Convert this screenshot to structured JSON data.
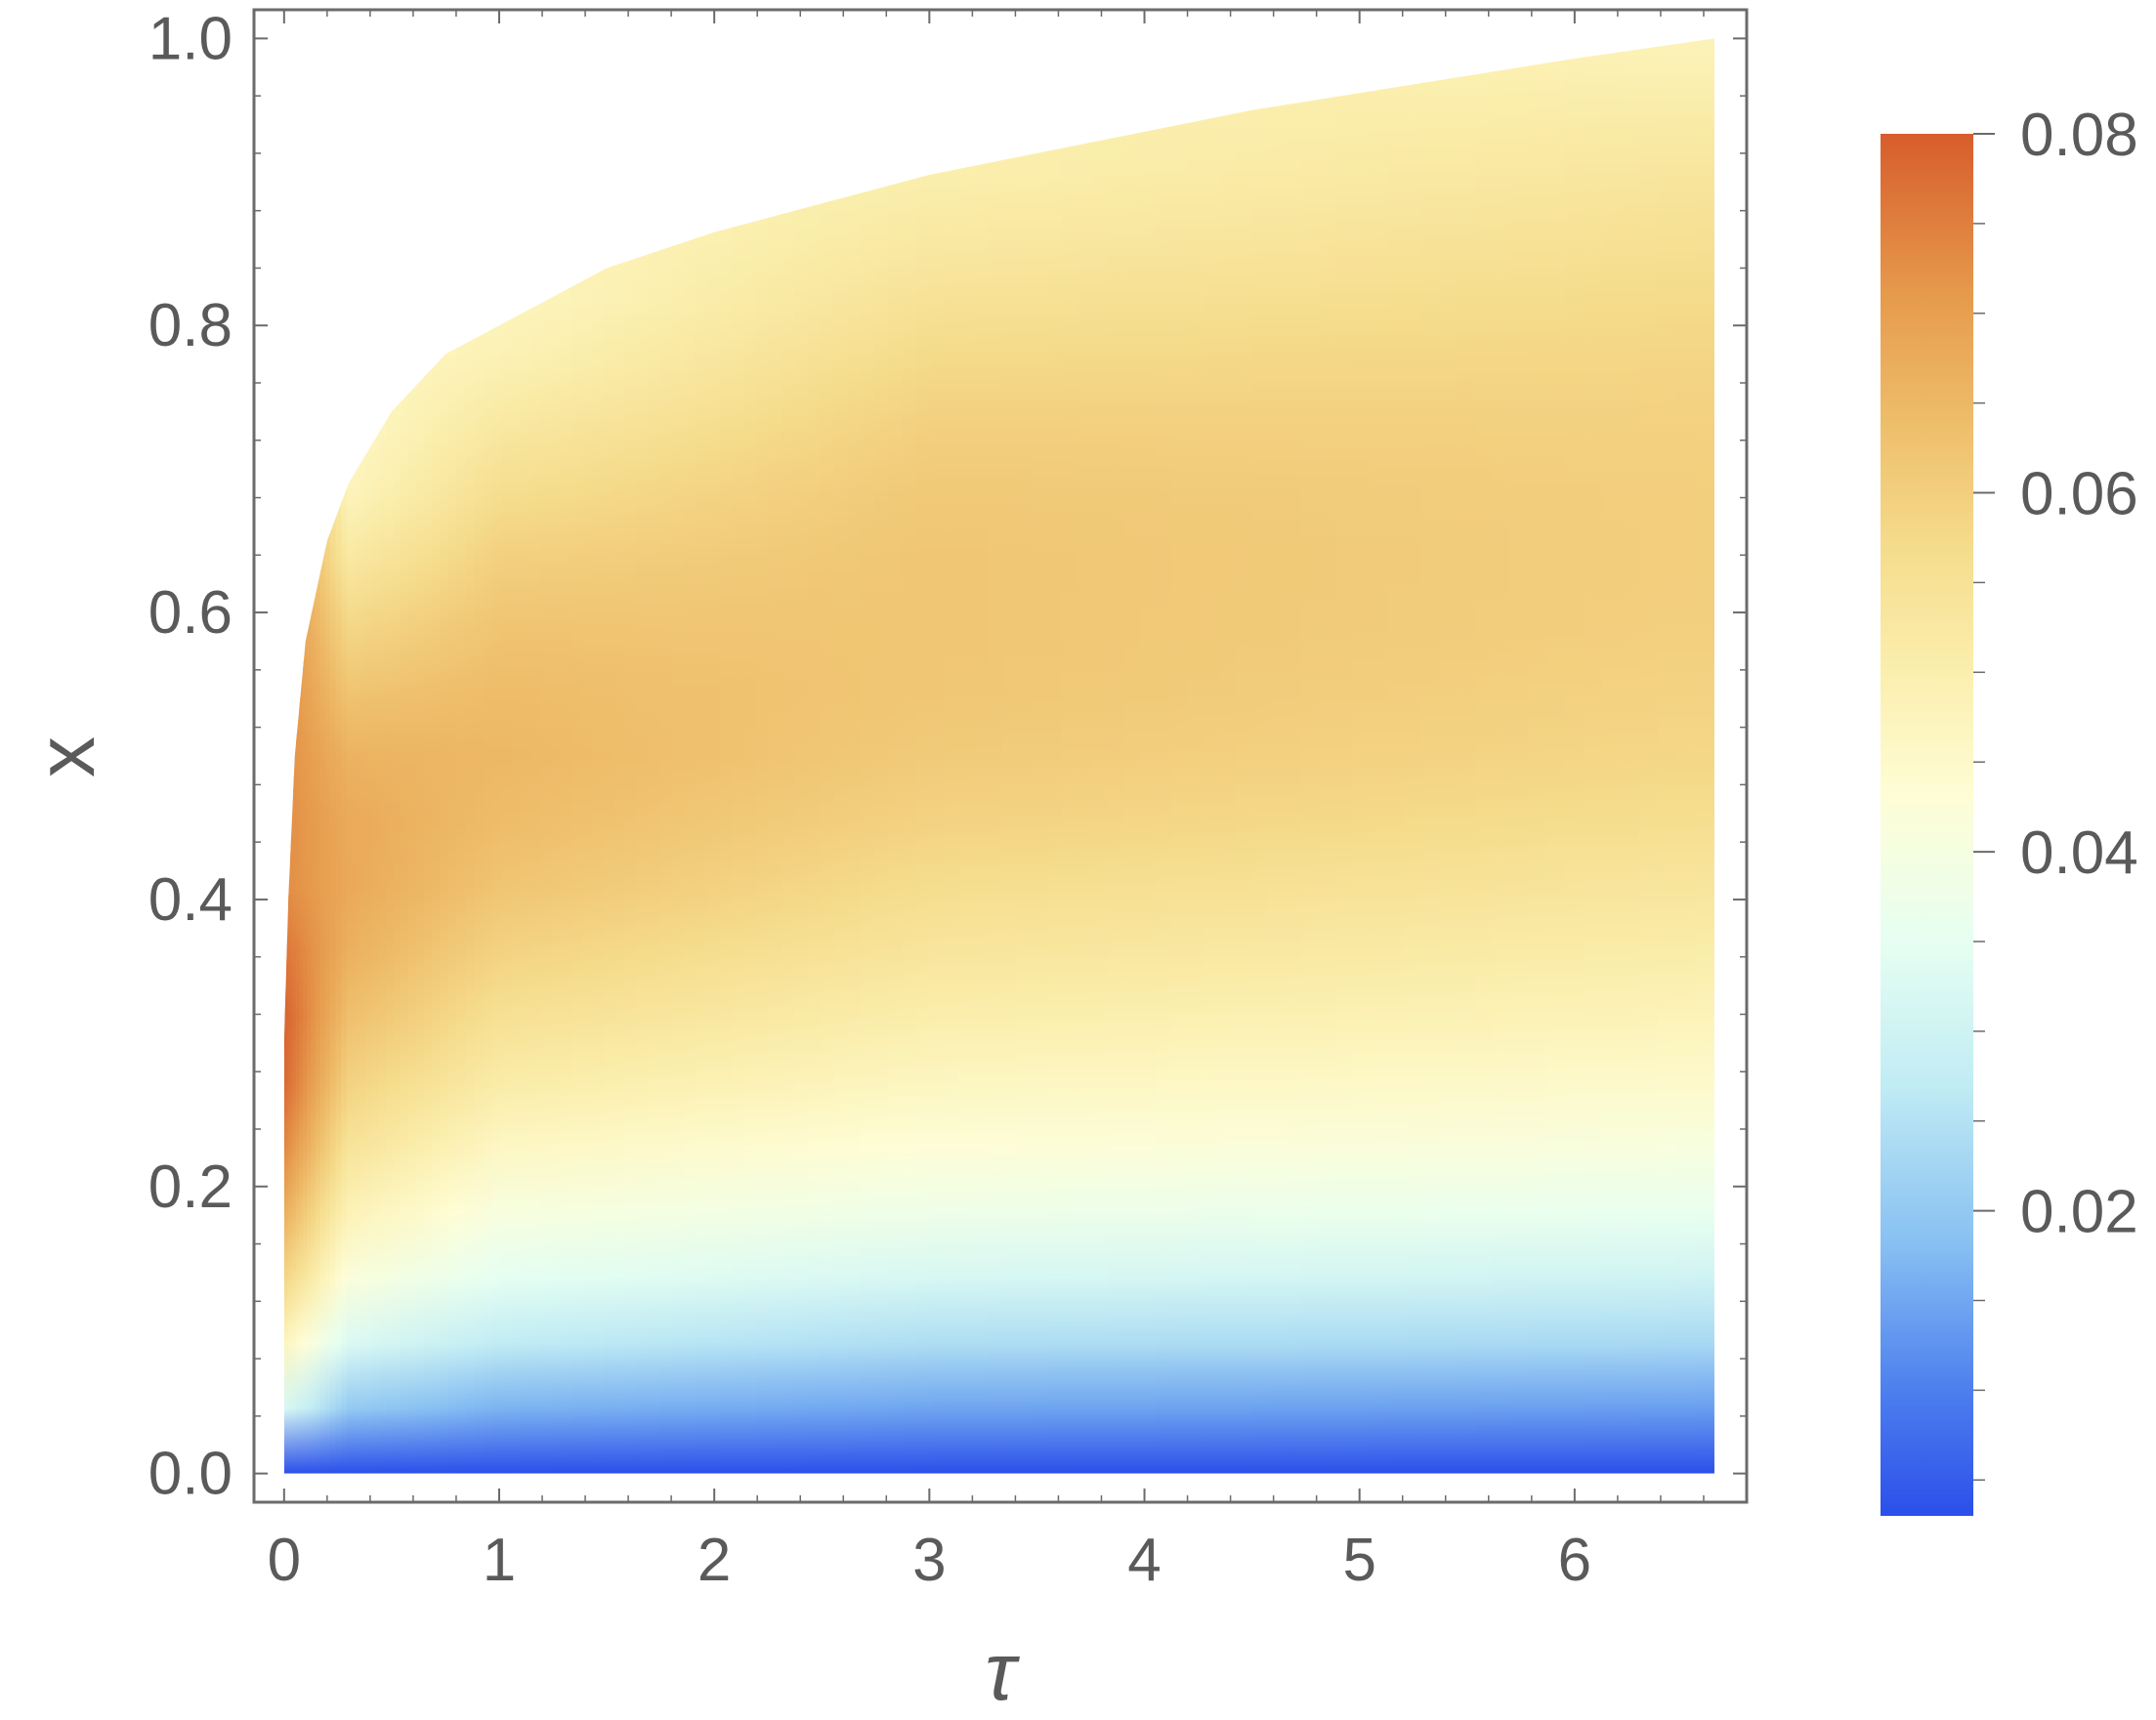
{
  "chart_data": {
    "type": "heatmap",
    "title": "",
    "xlabel": "τ",
    "ylabel": "x",
    "xlim": [
      -0.14,
      6.8
    ],
    "ylim": [
      -0.02,
      1.02
    ],
    "x_ticks": [
      0,
      1,
      2,
      3,
      4,
      5,
      6
    ],
    "x_tick_labels": [
      "0",
      "1",
      "2",
      "3",
      "4",
      "5",
      "6"
    ],
    "y_ticks": [
      0.0,
      0.2,
      0.4,
      0.6,
      0.8,
      1.0
    ],
    "y_tick_labels": [
      "0.0",
      "0.2",
      "0.4",
      "0.6",
      "0.8",
      "1.0"
    ],
    "grid": false,
    "domain": {
      "tau_max": 6.65,
      "x_min": 0.0,
      "upper_boundary_tau": [
        0.0,
        0.02,
        0.05,
        0.1,
        0.2,
        0.3,
        0.5,
        0.75,
        1.0,
        1.5,
        2.0,
        2.5,
        3.0,
        3.5,
        4.0,
        4.5,
        5.0,
        5.5,
        6.0,
        6.65
      ],
      "upper_boundary_x": [
        0.3,
        0.4,
        0.5,
        0.58,
        0.65,
        0.69,
        0.74,
        0.78,
        0.8,
        0.84,
        0.865,
        0.885,
        0.905,
        0.92,
        0.935,
        0.95,
        0.962,
        0.974,
        0.986,
        1.0
      ]
    },
    "value_field": {
      "x_samples": [
        0.0,
        0.05,
        0.1,
        0.15,
        0.2,
        0.25,
        0.3,
        0.35,
        0.4,
        0.45,
        0.5,
        0.55,
        0.6,
        0.65,
        0.7,
        0.75,
        0.8,
        0.85,
        0.9,
        0.95,
        1.0
      ],
      "rows": [
        {
          "tau": 0.0,
          "values": [
            0.003,
            0.035,
            0.05,
            0.062,
            0.07,
            0.077,
            0.08,
            0.078,
            0.073
          ]
        },
        {
          "tau": 0.3,
          "values": [
            0.003,
            0.022,
            0.035,
            0.044,
            0.051,
            0.057,
            0.062,
            0.066,
            0.068,
            0.068,
            0.066,
            0.062,
            0.057,
            0.051,
            0.046
          ]
        },
        {
          "tau": 1.0,
          "values": [
            0.003,
            0.018,
            0.029,
            0.037,
            0.043,
            0.049,
            0.054,
            0.058,
            0.062,
            0.064,
            0.065,
            0.064,
            0.062,
            0.059,
            0.055,
            0.051,
            0.047
          ]
        },
        {
          "tau": 3.0,
          "values": [
            0.003,
            0.016,
            0.026,
            0.034,
            0.04,
            0.045,
            0.049,
            0.053,
            0.056,
            0.059,
            0.061,
            0.062,
            0.062,
            0.062,
            0.061,
            0.059,
            0.056,
            0.053,
            0.05
          ]
        },
        {
          "tau": 6.65,
          "values": [
            0.003,
            0.015,
            0.025,
            0.032,
            0.038,
            0.043,
            0.047,
            0.05,
            0.053,
            0.056,
            0.058,
            0.059,
            0.06,
            0.06,
            0.06,
            0.059,
            0.058,
            0.056,
            0.054,
            0.051,
            0.048
          ]
        }
      ]
    },
    "colorbar": {
      "min": 0.003,
      "max": 0.08,
      "ticks": [
        0.02,
        0.04,
        0.06,
        0.08
      ],
      "tick_labels": [
        "0.02",
        "0.04",
        "0.06",
        "0.08"
      ],
      "minor_ticks": [
        0.005,
        0.01,
        0.015,
        0.025,
        0.03,
        0.035,
        0.045,
        0.05,
        0.055,
        0.065,
        0.07,
        0.075
      ],
      "placement": "right",
      "gradient_stops": [
        {
          "value": 0.003,
          "color": "#2b4fea"
        },
        {
          "value": 0.01,
          "color": "#4d7fee"
        },
        {
          "value": 0.018,
          "color": "#86bff2"
        },
        {
          "value": 0.027,
          "color": "#c1ecf4"
        },
        {
          "value": 0.035,
          "color": "#e6fff2"
        },
        {
          "value": 0.043,
          "color": "#fefdd6"
        },
        {
          "value": 0.05,
          "color": "#fbefae"
        },
        {
          "value": 0.057,
          "color": "#f5dc8c"
        },
        {
          "value": 0.064,
          "color": "#eebd6a"
        },
        {
          "value": 0.071,
          "color": "#e69a4c"
        },
        {
          "value": 0.08,
          "color": "#d75d2c"
        }
      ]
    }
  },
  "colors": {
    "frame": "#6b6b6b",
    "text": "#5a5a5a",
    "background": "#ffffff"
  }
}
